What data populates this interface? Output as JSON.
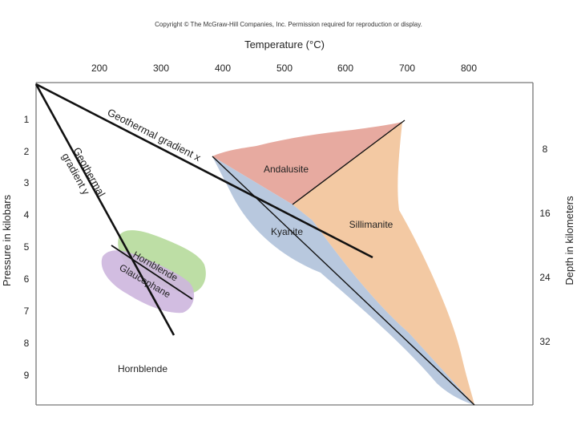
{
  "copyright": "Copyright © The McGraw-Hill Companies, Inc. Permission required for reproduction or display.",
  "axes": {
    "top_title": "Temperature (°C)",
    "left_title": "Pressure in kilobars",
    "right_title": "Depth in kilometers",
    "top_ticks": [
      "200",
      "300",
      "400",
      "500",
      "600",
      "700",
      "800"
    ],
    "left_ticks": [
      "1",
      "2",
      "3",
      "4",
      "5",
      "6",
      "7",
      "8",
      "9"
    ],
    "right_ticks": [
      "8",
      "16",
      "24",
      "32"
    ]
  },
  "fields": {
    "andalusite": "Andalusite",
    "kyanite": "Kyanite",
    "sillimanite": "Sillimanite",
    "hornblende_top": "Hornblende",
    "glaucophane": "Glaucophane",
    "hornblende_bottom": "Hornblende"
  },
  "gradients": {
    "x_label": "Geothermal gradient x",
    "y_line1": "Geothermal",
    "y_line2": "gradient y"
  },
  "colors": {
    "andalusite": "#e7aaa0",
    "kyanite": "#b8c8de",
    "sillimanite": "#f3c9a3",
    "hornblende_field": "#b9dca0",
    "glaucophane_field": "#cdb6de"
  }
}
